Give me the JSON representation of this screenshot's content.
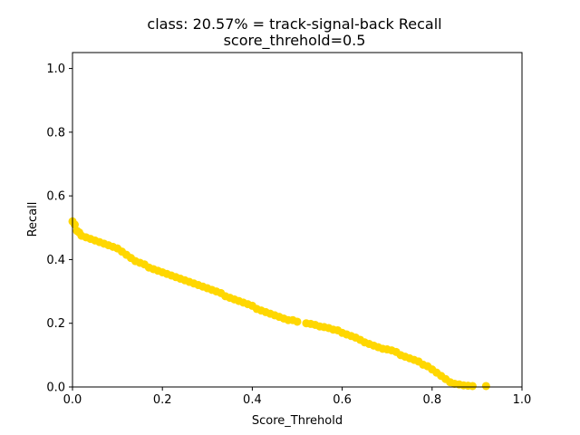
{
  "chart_data": {
    "type": "scatter",
    "title": "class: 20.57% = track-signal-back Recall",
    "subtitle": "score_threhold=0.5",
    "xlabel": "Score_Threhold",
    "ylabel": "Recall",
    "xlim": [
      0.0,
      1.0
    ],
    "ylim": [
      0.0,
      1.05
    ],
    "xticks": [
      "0.0",
      "0.2",
      "0.4",
      "0.6",
      "0.8",
      "1.0"
    ],
    "yticks": [
      "0.0",
      "0.2",
      "0.4",
      "0.6",
      "0.8",
      "1.0"
    ],
    "grid": false,
    "marker_color": "#FFD700",
    "series": [
      {
        "x": [
          0.0,
          0.005,
          0.01,
          0.015,
          0.02,
          0.03,
          0.04,
          0.05,
          0.06,
          0.07,
          0.08,
          0.09,
          0.1,
          0.11,
          0.12,
          0.13,
          0.14,
          0.15,
          0.16,
          0.17,
          0.18,
          0.19,
          0.2,
          0.21,
          0.22,
          0.23,
          0.24,
          0.25,
          0.26,
          0.27,
          0.28,
          0.29,
          0.3,
          0.31,
          0.32,
          0.33,
          0.34,
          0.35,
          0.36,
          0.37,
          0.38,
          0.39,
          0.4,
          0.41,
          0.42,
          0.43,
          0.44,
          0.45,
          0.46,
          0.47,
          0.48,
          0.49,
          0.5,
          0.52,
          0.53,
          0.54,
          0.55,
          0.56,
          0.57,
          0.58,
          0.59,
          0.6,
          0.61,
          0.62,
          0.63,
          0.64,
          0.65,
          0.66,
          0.67,
          0.68,
          0.69,
          0.7,
          0.71,
          0.72,
          0.73,
          0.74,
          0.75,
          0.76,
          0.77,
          0.78,
          0.79,
          0.8,
          0.81,
          0.82,
          0.83,
          0.84,
          0.85,
          0.86,
          0.87,
          0.88,
          0.89,
          0.92
        ],
        "y": [
          0.52,
          0.51,
          0.49,
          0.485,
          0.475,
          0.47,
          0.465,
          0.46,
          0.455,
          0.45,
          0.445,
          0.44,
          0.435,
          0.425,
          0.415,
          0.405,
          0.395,
          0.39,
          0.385,
          0.375,
          0.37,
          0.365,
          0.36,
          0.355,
          0.35,
          0.345,
          0.34,
          0.335,
          0.33,
          0.325,
          0.32,
          0.315,
          0.31,
          0.305,
          0.3,
          0.295,
          0.285,
          0.28,
          0.275,
          0.27,
          0.265,
          0.26,
          0.255,
          0.245,
          0.24,
          0.235,
          0.23,
          0.225,
          0.22,
          0.215,
          0.21,
          0.21,
          0.205,
          0.2,
          0.198,
          0.195,
          0.19,
          0.188,
          0.185,
          0.18,
          0.178,
          0.17,
          0.165,
          0.16,
          0.155,
          0.148,
          0.14,
          0.135,
          0.13,
          0.125,
          0.12,
          0.118,
          0.115,
          0.11,
          0.1,
          0.095,
          0.09,
          0.085,
          0.08,
          0.07,
          0.065,
          0.055,
          0.045,
          0.035,
          0.025,
          0.015,
          0.01,
          0.008,
          0.005,
          0.004,
          0.003,
          0.003
        ]
      }
    ]
  }
}
